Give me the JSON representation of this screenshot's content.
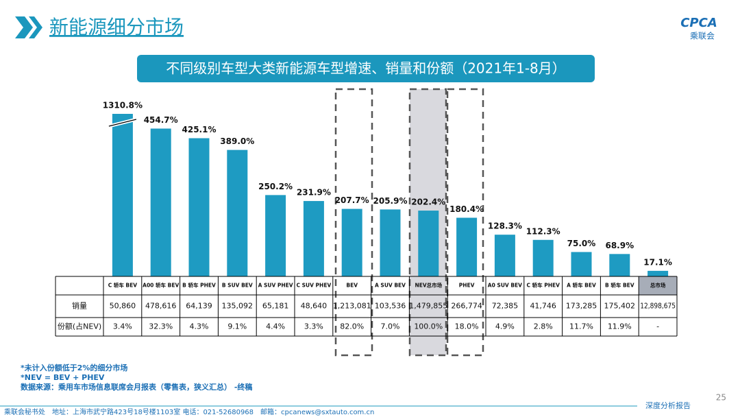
{
  "header": {
    "title": "新能源细分市场",
    "logo": "CPCA",
    "logo_sub": "乘联会"
  },
  "chart_data": {
    "type": "bar",
    "title": "不同级别车型大类新能源车型增速、销量和份额（2021年1-8月）",
    "color": "#1e9bc2",
    "categories": [
      "C 轿车 BEV",
      "A00 轿车 BEV",
      "B 轿车 PHEV",
      "B SUV BEV",
      "A SUV PHEV",
      "C SUV PHEV",
      "BEV",
      "A SUV BEV",
      "NEV总市场",
      "PHEV",
      "A0 SUV BEV",
      "C 轿车 PHEV",
      "A 轿车 BEV",
      "B 轿车 BEV",
      "总市场"
    ],
    "values": [
      1310.8,
      454.7,
      425.1,
      389.0,
      250.2,
      231.9,
      207.7,
      205.9,
      202.4,
      180.4,
      128.3,
      112.3,
      75.0,
      68.9,
      17.1
    ],
    "value_labels": [
      "1310.8%",
      "454.7%",
      "425.1%",
      "389.0%",
      "250.2%",
      "231.9%",
      "207.7%",
      "205.9%",
      "202.4%",
      "180.4%",
      "128.3%",
      "112.3%",
      "75.0%",
      "68.9%",
      "17.1%"
    ],
    "ylim": [
      0,
      500
    ],
    "table": {
      "row_labels": [
        "销量",
        "份额(占NEV)"
      ],
      "rows": [
        [
          "50,860",
          "478,616",
          "64,139",
          "135,092",
          "65,181",
          "48,640",
          "1,213,081",
          "103,536",
          "1,479,855",
          "266,774",
          "72,385",
          "41,746",
          "173,285",
          "175,402",
          "12,898,675"
        ],
        [
          "3.4%",
          "32.3%",
          "4.3%",
          "9.1%",
          "4.4%",
          "3.3%",
          "82.0%",
          "7.0%",
          "100.0%",
          "18.0%",
          "4.9%",
          "2.8%",
          "11.7%",
          "11.9%",
          "-"
        ]
      ]
    }
  },
  "notes": [
    "*未计入份额低于2%的细分市场",
    "*NEV = BEV + PHEV",
    "数据来源：乘用车市场信息联席会月报表（零售表，狭义汇总） -终稿"
  ],
  "footer": {
    "page": "25",
    "contact": "乘联会秘书处　地址：上海市武宁路423号18号楼1103室 电话：021-52680968　邮箱：cpcanews@sxtauto.com.cn",
    "tag": "深度分析报告"
  }
}
